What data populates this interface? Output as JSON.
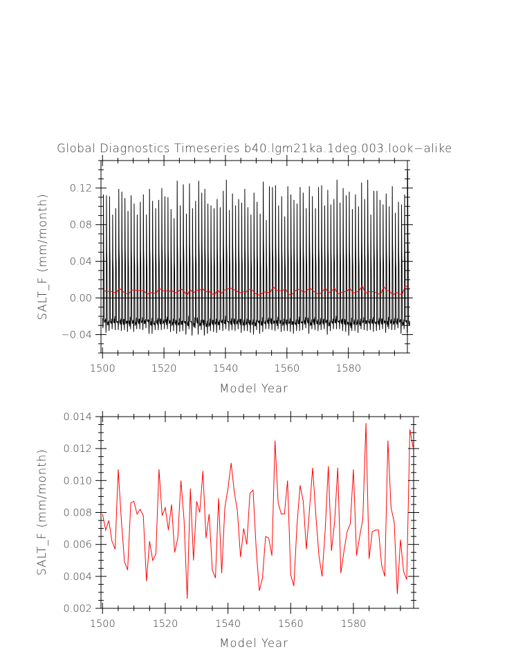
{
  "chart_data": [
    {
      "type": "line",
      "title": "Global Diagnostics Timeseries b40.lgm21ka.1deg.003.look−alike",
      "xlabel": "Model Year",
      "ylabel": "SALT_F (mm/month)",
      "xlim": [
        1499.5,
        1599.2
      ],
      "ylim": [
        -0.06,
        0.15
      ],
      "xticks_major": [
        1500,
        1520,
        1540,
        1560,
        1580
      ],
      "xtick_labels": [
        "1500",
        "1520",
        "1540",
        "1560",
        "1580"
      ],
      "yticks_major": [
        -0.04,
        0.0,
        0.04,
        0.08,
        0.12
      ],
      "ytick_labels": [
        "−0.04",
        "0.00",
        "0.04",
        "0.08",
        "0.12"
      ],
      "zero_line": true,
      "grid": false,
      "series": [
        {
          "color": "#000000",
          "resolution": "monthly",
          "annual_maxima": [
            0.113,
            0.112,
            0.111,
            0.091,
            0.098,
            0.119,
            0.116,
            0.109,
            0.095,
            0.112,
            0.103,
            0.091,
            0.105,
            0.113,
            0.091,
            0.119,
            0.106,
            0.098,
            0.107,
            0.12,
            0.111,
            0.11,
            0.097,
            0.087,
            0.128,
            0.101,
            0.124,
            0.092,
            0.125,
            0.098,
            0.106,
            0.128,
            0.115,
            0.119,
            0.103,
            0.101,
            0.098,
            0.108,
            0.099,
            0.117,
            0.129,
            0.096,
            0.114,
            0.101,
            0.108,
            0.104,
            0.119,
            0.099,
            0.091,
            0.115,
            0.105,
            0.092,
            0.127,
            0.085,
            0.122,
            0.121,
            0.123,
            0.101,
            0.111,
            0.089,
            0.122,
            0.113,
            0.107,
            0.103,
            0.121,
            0.115,
            0.098,
            0.122,
            0.111,
            0.098,
            0.121,
            0.123,
            0.101,
            0.118,
            0.102,
            0.108,
            0.129,
            0.104,
            0.12,
            0.112,
            0.116,
            0.097,
            0.113,
            0.1,
            0.126,
            0.108,
            0.129,
            0.091,
            0.117,
            0.117,
            0.107,
            0.102,
            0.114,
            0.1,
            0.122,
            0.093,
            0.105,
            0.102,
            0.113,
            0.139
          ],
          "annual_minima": [
            -0.033,
            -0.038,
            -0.036,
            -0.034,
            -0.035,
            -0.035,
            -0.036,
            -0.035,
            -0.037,
            -0.034,
            -0.037,
            -0.034,
            -0.034,
            -0.035,
            -0.033,
            -0.039,
            -0.039,
            -0.035,
            -0.035,
            -0.035,
            -0.034,
            -0.034,
            -0.037,
            -0.036,
            -0.039,
            -0.037,
            -0.036,
            -0.04,
            -0.034,
            -0.041,
            -0.033,
            -0.04,
            -0.035,
            -0.041,
            -0.039,
            -0.036,
            -0.037,
            -0.038,
            -0.035,
            -0.036,
            -0.034,
            -0.036,
            -0.035,
            -0.036,
            -0.034,
            -0.038,
            -0.036,
            -0.036,
            -0.038,
            -0.04,
            -0.035,
            -0.039,
            -0.037,
            -0.034,
            -0.034,
            -0.035,
            -0.036,
            -0.034,
            -0.037,
            -0.036,
            -0.036,
            -0.037,
            -0.039,
            -0.036,
            -0.036,
            -0.035,
            -0.033,
            -0.039,
            -0.034,
            -0.035,
            -0.036,
            -0.035,
            -0.034,
            -0.04,
            -0.036,
            -0.034,
            -0.034,
            -0.034,
            -0.036,
            -0.037,
            -0.041,
            -0.036,
            -0.036,
            -0.038,
            -0.034,
            -0.035,
            -0.036,
            -0.035,
            -0.037,
            -0.036,
            -0.035,
            -0.034,
            -0.038,
            -0.034,
            -0.035,
            -0.035,
            -0.033,
            -0.039,
            -0.034,
            -0.038
          ]
        },
        {
          "color": "#ff0000",
          "resolution": "annual mean",
          "values_ref": "annual_means"
        }
      ]
    },
    {
      "type": "line",
      "title": "",
      "xlabel": "Model Year",
      "ylabel": "SALT_F (mm/month)",
      "xlim": [
        1499.5,
        1599.2
      ],
      "ylim": [
        0.002,
        0.014
      ],
      "xticks_major": [
        1500,
        1520,
        1540,
        1560,
        1580
      ],
      "xtick_labels": [
        "1500",
        "1520",
        "1540",
        "1560",
        "1580"
      ],
      "yticks_major": [
        0.002,
        0.004,
        0.006,
        0.008,
        0.01,
        0.012,
        0.014
      ],
      "ytick_labels": [
        "0.002",
        "0.004",
        "0.006",
        "0.008",
        "0.010",
        "0.012",
        "0.014"
      ],
      "grid": false,
      "series": [
        {
          "color": "#ff0000",
          "x_start": 1500,
          "x_step": 1,
          "values": [
            0.0079,
            0.0069,
            0.0075,
            0.0062,
            0.0057,
            0.0107,
            0.0075,
            0.0049,
            0.0044,
            0.0086,
            0.0087,
            0.0079,
            0.0082,
            0.0078,
            0.0037,
            0.0062,
            0.005,
            0.0054,
            0.0107,
            0.0078,
            0.0083,
            0.0069,
            0.0085,
            0.0055,
            0.0064,
            0.01,
            0.0075,
            0.0026,
            0.0095,
            0.005,
            0.0087,
            0.008,
            0.0106,
            0.0064,
            0.0079,
            0.0044,
            0.0039,
            0.0089,
            0.0042,
            0.0083,
            0.0095,
            0.0111,
            0.0093,
            0.0081,
            0.0052,
            0.007,
            0.006,
            0.0092,
            0.0094,
            0.0057,
            0.0031,
            0.0039,
            0.0065,
            0.0064,
            0.0053,
            0.0125,
            0.0086,
            0.0079,
            0.0079,
            0.01,
            0.0041,
            0.0034,
            0.0072,
            0.0097,
            0.0087,
            0.0057,
            0.0082,
            0.0108,
            0.0079,
            0.0053,
            0.004,
            0.0069,
            0.0109,
            0.0056,
            0.0074,
            0.0108,
            0.0042,
            0.0056,
            0.0068,
            0.0073,
            0.0107,
            0.0053,
            0.0065,
            0.0076,
            0.0136,
            0.0051,
            0.0068,
            0.0069,
            0.0069,
            0.0047,
            0.004,
            0.0125,
            0.0083,
            0.0074,
            0.0029,
            0.0063,
            0.0043,
            0.0038,
            0.0132,
            0.0121
          ]
        }
      ]
    }
  ]
}
